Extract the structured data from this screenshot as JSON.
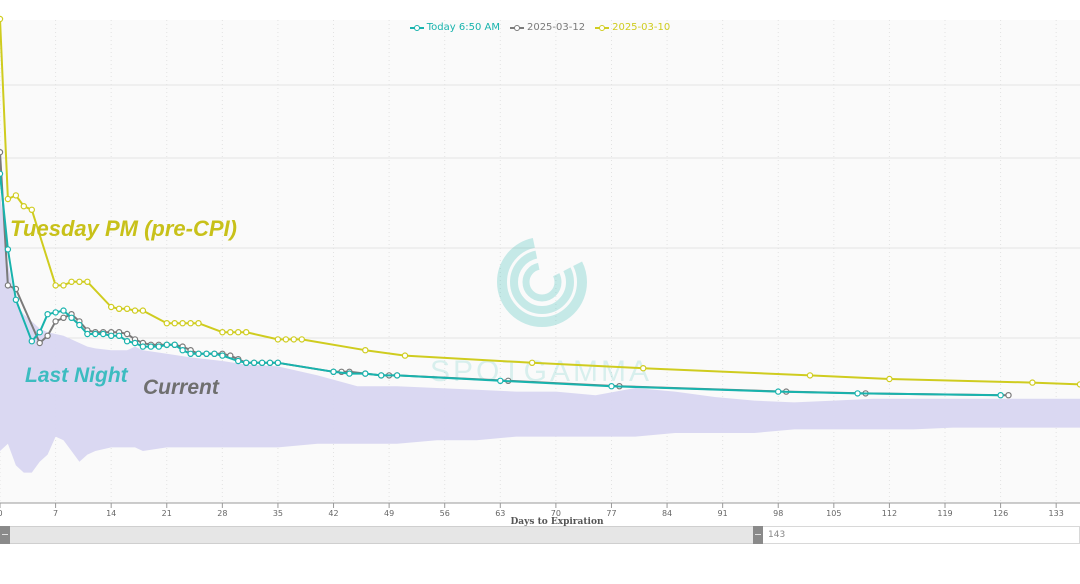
{
  "legend": [
    {
      "label": "Today 6:50 AM",
      "color": "#18b3ad"
    },
    {
      "label": "2025-03-12",
      "color": "#7a7a7a"
    },
    {
      "label": "2025-03-10",
      "color": "#cfcc1f"
    }
  ],
  "annotations": {
    "tuesday": "Tuesday PM (pre-CPI)",
    "last_night": "Last Night",
    "current": "Current"
  },
  "navigator": {
    "label": "143"
  },
  "watermark": {
    "text": "SPOTGAMMA"
  },
  "chart_data": {
    "type": "line",
    "xlabel": "Days to Expiration",
    "ylabel": "",
    "xlim": [
      0,
      136
    ],
    "ylim": [
      0,
      100
    ],
    "x_ticks": [
      0,
      7,
      14,
      21,
      28,
      35,
      42,
      49,
      56,
      63,
      70,
      77,
      84,
      91,
      98,
      105,
      112,
      119,
      126,
      133
    ],
    "x_tick_labels": [
      "0",
      "7",
      "14",
      "21",
      "28",
      "35",
      "42",
      "49",
      "56",
      "63",
      "70",
      "77",
      "84",
      "91",
      "98",
      "105",
      "112",
      "119",
      "126",
      "133"
    ],
    "grid": true,
    "legend_position": "top-center",
    "series": [
      {
        "name": "Today 6:50 AM",
        "color": "#18b3ad",
        "points": [
          [
            0,
            72
          ],
          [
            1,
            51
          ],
          [
            2,
            37
          ],
          [
            4,
            25.5
          ],
          [
            5,
            28
          ],
          [
            6,
            33
          ],
          [
            7,
            33.5
          ],
          [
            8,
            34
          ],
          [
            9,
            32
          ],
          [
            10,
            30
          ],
          [
            11,
            27.5
          ],
          [
            12,
            27.5
          ],
          [
            13,
            27.5
          ],
          [
            14,
            27
          ],
          [
            15,
            27
          ],
          [
            16,
            25.5
          ],
          [
            17,
            25
          ],
          [
            18,
            24
          ],
          [
            19,
            24
          ],
          [
            20,
            24
          ],
          [
            21,
            24.5
          ],
          [
            22,
            24.5
          ],
          [
            23,
            23
          ],
          [
            24,
            22
          ],
          [
            25,
            22
          ],
          [
            26,
            22
          ],
          [
            27,
            22
          ],
          [
            28,
            21.5
          ],
          [
            30,
            20
          ],
          [
            31,
            19.5
          ],
          [
            32,
            19.5
          ],
          [
            33,
            19.5
          ],
          [
            34,
            19.5
          ],
          [
            35,
            19.5
          ],
          [
            42,
            17
          ],
          [
            44,
            16.5
          ],
          [
            46,
            16.5
          ],
          [
            48,
            16
          ],
          [
            50,
            16
          ],
          [
            63,
            14.5
          ],
          [
            77,
            13
          ],
          [
            98,
            11.5
          ],
          [
            108,
            11
          ],
          [
            126,
            10.5
          ]
        ]
      },
      {
        "name": "2025-03-12",
        "color": "#7a7a7a",
        "points": [
          [
            0,
            78
          ],
          [
            1,
            41
          ],
          [
            2,
            40
          ],
          [
            5,
            25
          ],
          [
            6,
            27
          ],
          [
            7,
            31
          ],
          [
            8,
            32
          ],
          [
            9,
            33
          ],
          [
            10,
            31
          ],
          [
            11,
            28.5
          ],
          [
            12,
            28
          ],
          [
            13,
            28
          ],
          [
            14,
            28
          ],
          [
            15,
            28
          ],
          [
            16,
            27.5
          ],
          [
            17,
            26
          ],
          [
            18,
            25
          ],
          [
            19,
            24.5
          ],
          [
            20,
            24.5
          ],
          [
            21,
            24.5
          ],
          [
            22,
            24.5
          ],
          [
            23,
            24
          ],
          [
            24,
            23
          ],
          [
            25,
            22
          ],
          [
            26,
            22
          ],
          [
            27,
            22
          ],
          [
            28,
            22
          ],
          [
            29,
            21.5
          ],
          [
            30,
            20.5
          ],
          [
            31,
            19.5
          ],
          [
            32,
            19.5
          ],
          [
            33,
            19.5
          ],
          [
            34,
            19.5
          ],
          [
            35,
            19.5
          ],
          [
            42,
            17
          ],
          [
            43,
            17
          ],
          [
            44,
            17
          ],
          [
            46,
            16.5
          ],
          [
            48,
            16
          ],
          [
            49,
            16
          ],
          [
            50,
            16
          ],
          [
            64,
            14.5
          ],
          [
            78,
            13
          ],
          [
            99,
            11.5
          ],
          [
            109,
            11
          ],
          [
            127,
            10.5
          ]
        ]
      },
      {
        "name": "2025-03-10",
        "color": "#cfcc1f",
        "points": [
          [
            0,
            115
          ],
          [
            1,
            65
          ],
          [
            2,
            66
          ],
          [
            3,
            63
          ],
          [
            4,
            62
          ],
          [
            7,
            41
          ],
          [
            8,
            41
          ],
          [
            9,
            42
          ],
          [
            10,
            42
          ],
          [
            11,
            42
          ],
          [
            14,
            35
          ],
          [
            15,
            34.5
          ],
          [
            16,
            34.5
          ],
          [
            17,
            34
          ],
          [
            18,
            34
          ],
          [
            21,
            30.5
          ],
          [
            22,
            30.5
          ],
          [
            23,
            30.5
          ],
          [
            24,
            30.5
          ],
          [
            25,
            30.5
          ],
          [
            28,
            28
          ],
          [
            29,
            28
          ],
          [
            30,
            28
          ],
          [
            31,
            28
          ],
          [
            35,
            26
          ],
          [
            36,
            26
          ],
          [
            37,
            26
          ],
          [
            38,
            26
          ],
          [
            46,
            23
          ],
          [
            51,
            21.5
          ],
          [
            67,
            19.5
          ],
          [
            81,
            18
          ],
          [
            102,
            16
          ],
          [
            112,
            15
          ],
          [
            130,
            14
          ],
          [
            136,
            13.5
          ]
        ]
      }
    ],
    "range_band": {
      "name": "",
      "color": "#d8d6f1",
      "x": [
        0,
        1,
        2,
        3,
        4,
        5,
        6,
        7,
        8,
        9,
        10,
        11,
        12,
        14,
        16,
        17,
        18,
        21,
        24,
        28,
        31,
        35,
        40,
        45,
        50,
        55,
        60,
        65,
        70,
        75,
        80,
        85,
        90,
        95,
        100,
        105,
        110,
        115,
        120,
        125,
        130,
        136
      ],
      "upper": [
        67,
        47,
        36,
        33,
        31,
        29,
        28,
        27.5,
        27,
        26,
        25,
        24,
        23.5,
        23,
        23,
        24,
        23,
        22,
        21,
        20,
        19,
        18.5,
        16,
        13,
        13,
        12.5,
        12,
        11.5,
        11.5,
        10.5,
        12.5,
        11.5,
        10,
        9,
        8.5,
        9,
        9.5,
        9.5,
        9.5,
        9.5,
        9.5,
        9.5
      ],
      "lower": [
        -5,
        -3,
        -9,
        -11,
        -11,
        -8,
        -6,
        -1,
        -2,
        -5,
        -8,
        -6,
        -5,
        -4,
        -4,
        -4,
        -5,
        -4,
        -4,
        -4,
        -4,
        -4,
        -3,
        -3,
        -3,
        -2,
        -2,
        -1,
        -1,
        -1,
        -1,
        0,
        0,
        0,
        1,
        1,
        1,
        1,
        1.5,
        1.5,
        1.5,
        1.5
      ]
    }
  }
}
